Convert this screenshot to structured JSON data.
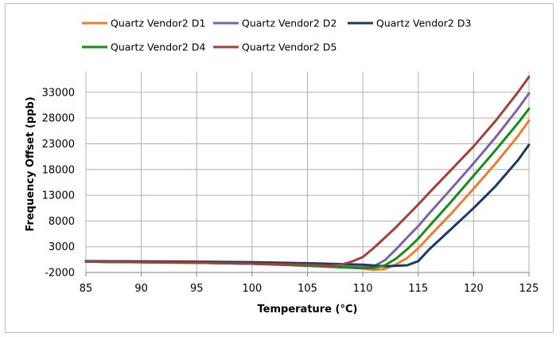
{
  "chart_data": {
    "type": "line",
    "xlabel": "Temperature (°C)",
    "ylabel": "Frequency Offset (ppb)",
    "xlim": [
      85,
      125
    ],
    "ylim": [
      -2000,
      37000
    ],
    "x_ticks": [
      85,
      90,
      95,
      100,
      105,
      110,
      115,
      120,
      125
    ],
    "y_ticks": [
      -2000,
      3000,
      8000,
      13000,
      18000,
      23000,
      28000,
      33000
    ],
    "grid": true,
    "legend_position": "top",
    "series": [
      {
        "name": "Quartz Vendor2 D1",
        "color": "#ed7d31",
        "x": [
          85,
          95,
          100,
          105,
          110,
          111,
          112,
          113,
          114,
          115,
          116,
          118,
          120,
          122,
          124,
          125
        ],
        "y": [
          100,
          -100,
          -300,
          -600,
          -1200,
          -1500,
          -1300,
          -400,
          800,
          2700,
          5000,
          9500,
          14300,
          19200,
          24500,
          27500
        ]
      },
      {
        "name": "Quartz Vendor2 D2",
        "color": "#8064a2",
        "x": [
          85,
          95,
          100,
          105,
          110,
          111,
          112,
          113,
          114,
          115,
          116,
          118,
          120,
          122,
          124,
          125
        ],
        "y": [
          100,
          -100,
          -300,
          -600,
          -1000,
          -800,
          400,
          2500,
          4800,
          7000,
          9500,
          14300,
          19200,
          24300,
          29800,
          32800
        ]
      },
      {
        "name": "Quartz Vendor2 D3",
        "color": "#1f3a5f",
        "x": [
          85,
          95,
          100,
          105,
          110,
          112,
          114,
          115,
          116,
          118,
          120,
          122,
          124,
          125
        ],
        "y": [
          200,
          100,
          0,
          -200,
          -500,
          -800,
          -600,
          200,
          2500,
          6500,
          10500,
          14800,
          19800,
          22800
        ]
      },
      {
        "name": "Quartz Vendor2 D4",
        "color": "#1a8a1a",
        "x": [
          85,
          95,
          100,
          105,
          110,
          111,
          112,
          113,
          114,
          115,
          116,
          118,
          120,
          122,
          124,
          125
        ],
        "y": [
          100,
          -100,
          -300,
          -700,
          -1200,
          -1100,
          -600,
          700,
          2500,
          4600,
          7000,
          11800,
          16800,
          21800,
          27000,
          29800
        ]
      },
      {
        "name": "Quartz Vendor2 D5",
        "color": "#a0413c",
        "x": [
          85,
          95,
          100,
          105,
          107,
          108,
          109,
          110,
          111,
          112,
          113,
          114,
          115,
          116,
          118,
          120,
          122,
          124,
          125
        ],
        "y": [
          100,
          -100,
          -300,
          -500,
          -700,
          -500,
          100,
          1000,
          2800,
          4800,
          6800,
          9000,
          11200,
          13500,
          18000,
          22500,
          27500,
          33000,
          36000
        ]
      }
    ]
  }
}
